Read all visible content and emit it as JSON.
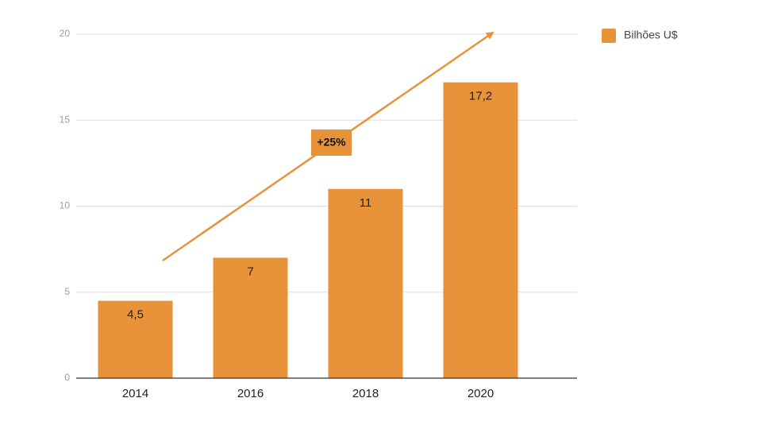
{
  "chart_data": {
    "type": "bar",
    "categories": [
      "2014",
      "2016",
      "2018",
      "2020"
    ],
    "series": [
      {
        "name": "Bilhões U$",
        "values": [
          4.5,
          7,
          11,
          17.2
        ],
        "color": "#e8923a"
      }
    ],
    "data_labels": [
      "4,5",
      "7",
      "11",
      "17,2"
    ],
    "title": "",
    "xlabel": "",
    "ylabel": "",
    "ylim": [
      0,
      20
    ],
    "yticks": [
      0,
      5,
      10,
      15,
      20
    ],
    "grid": true,
    "legend_position": "top-right",
    "annotation": {
      "text": "+25%",
      "type": "trend-arrow",
      "color": "#e8923a"
    },
    "colors": {
      "bar": "#e8923a",
      "grid": "#dddddd",
      "axis": "#333333"
    }
  }
}
